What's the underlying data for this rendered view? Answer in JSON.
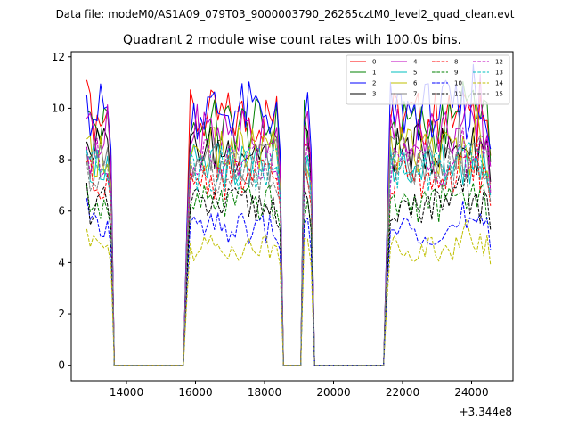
{
  "suptitle": "Data file: modeM0/AS1A09_079T03_9000003790_26265cztM0_level2_quad_clean.evt",
  "chart_data": {
    "type": "line",
    "title": "Quadrant 2 module wise count rates with 100.0s bins.",
    "xlabel": "",
    "ylabel": "",
    "x_offset_label": "+3.344e8",
    "xlim": [
      12400,
      25200
    ],
    "ylim": [
      -0.6,
      12.2
    ],
    "xticks": [
      14000,
      16000,
      18000,
      20000,
      22000,
      24000
    ],
    "xtick_labels": [
      "14000",
      "16000",
      "18000",
      "20000",
      "22000",
      "24000"
    ],
    "yticks": [
      0,
      2,
      4,
      6,
      8,
      10,
      12
    ],
    "ytick_labels": [
      "0",
      "2",
      "4",
      "6",
      "8",
      "10",
      "12"
    ],
    "grid": false,
    "legend_location": "top-right",
    "legend_columns": 4,
    "segments": [
      {
        "start": 12850,
        "end": 13550
      },
      {
        "start": 15750,
        "end": 18450
      },
      {
        "start": 19100,
        "end": 19350
      },
      {
        "start": 21550,
        "end": 24550
      }
    ],
    "series": [
      {
        "name": "0",
        "color": "#ff0000",
        "dashed": false,
        "level": 9.6,
        "first": 11.1
      },
      {
        "name": "1",
        "color": "#008000",
        "dashed": false,
        "level": 9.3,
        "first": 9.9
      },
      {
        "name": "2",
        "color": "#0000ff",
        "dashed": false,
        "level": 9.9,
        "first": 10.5
      },
      {
        "name": "3",
        "color": "#000000",
        "dashed": false,
        "level": 8.4,
        "first": 8.7
      },
      {
        "name": "4",
        "color": "#bf00bf",
        "dashed": false,
        "level": 9.1,
        "first": 9.6
      },
      {
        "name": "5",
        "color": "#00bfbf",
        "dashed": false,
        "level": 7.8,
        "first": 8.4
      },
      {
        "name": "6",
        "color": "#bfbf00",
        "dashed": false,
        "level": 8.3,
        "first": 8.8
      },
      {
        "name": "7",
        "color": "#808080",
        "dashed": false,
        "level": 8.0,
        "first": 8.2
      },
      {
        "name": "8",
        "color": "#ff0000",
        "dashed": true,
        "level": 7.3,
        "first": 7.9
      },
      {
        "name": "9",
        "color": "#008000",
        "dashed": true,
        "level": 6.3,
        "first": 7.0
      },
      {
        "name": "10",
        "color": "#0000ff",
        "dashed": true,
        "level": 5.3,
        "first": 6.5
      },
      {
        "name": "11",
        "color": "#000000",
        "dashed": true,
        "level": 6.2,
        "first": 7.1
      },
      {
        "name": "12",
        "color": "#bf00bf",
        "dashed": true,
        "level": 7.9,
        "first": 8.5
      },
      {
        "name": "13",
        "color": "#00bfbf",
        "dashed": true,
        "level": 7.7,
        "first": 8.3
      },
      {
        "name": "14",
        "color": "#bfbf00",
        "dashed": true,
        "level": 4.6,
        "first": 5.3
      },
      {
        "name": "15",
        "color": "#808080",
        "dashed": true,
        "level": 7.5,
        "first": 7.9
      }
    ]
  }
}
